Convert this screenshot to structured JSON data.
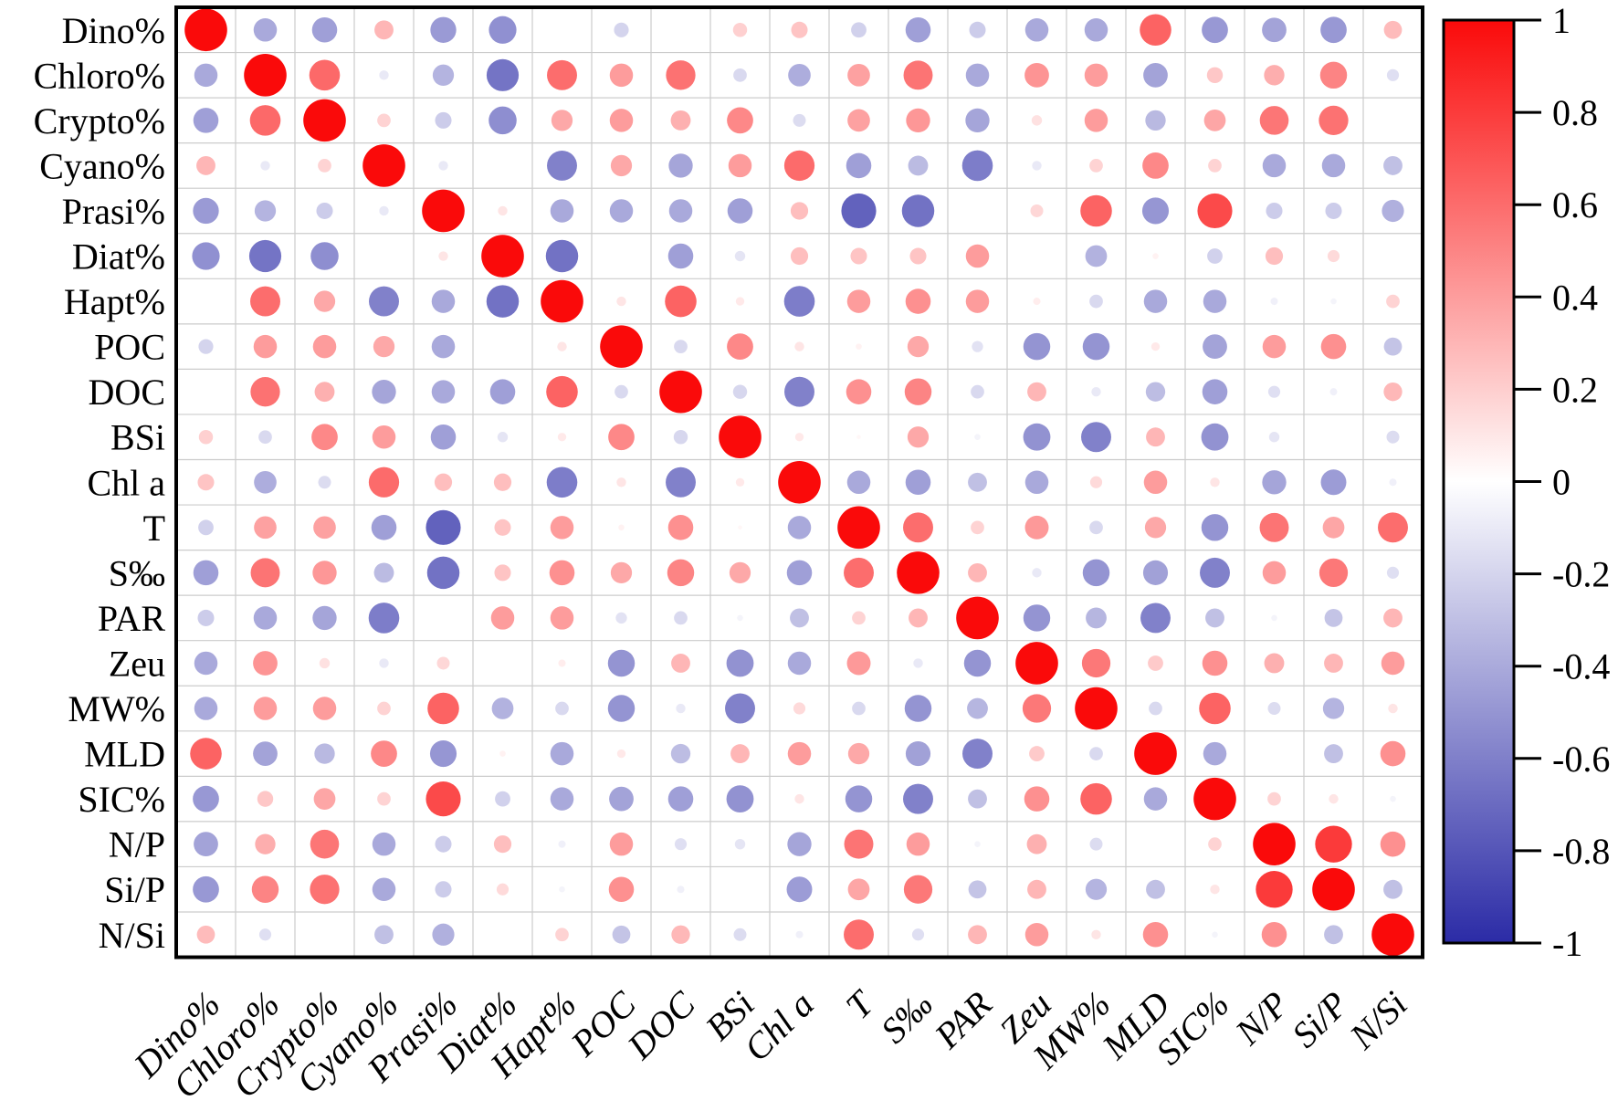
{
  "chart_data": {
    "type": "heatmap",
    "subtype": "correlation-bubble-matrix",
    "title": "",
    "xlabel": "",
    "ylabel": "",
    "variables": [
      "Dino%",
      "Chloro%",
      "Crypto%",
      "Cyano%",
      "Prasi%",
      "Diat%",
      "Hapt%",
      "POC",
      "DOC",
      "BSi",
      "Chl a",
      "T",
      "S‰",
      "PAR",
      "Zeu",
      "MW%",
      "MLD",
      "SIC%",
      "N/P",
      "Si/P",
      "N/Si"
    ],
    "matrix": [
      [
        1,
        -0.3,
        -0.35,
        0.2,
        -0.37,
        -0.42,
        0,
        -0.12,
        0,
        0.11,
        0.15,
        -0.13,
        -0.35,
        -0.15,
        -0.3,
        -0.3,
        0.55,
        -0.38,
        -0.33,
        -0.38,
        0.18
      ],
      [
        -0.3,
        1,
        0.52,
        -0.05,
        -0.25,
        -0.57,
        0.5,
        0.3,
        0.48,
        -0.1,
        -0.28,
        0.28,
        0.47,
        -0.3,
        0.33,
        0.3,
        -0.33,
        0.14,
        0.23,
        0.4,
        -0.08
      ],
      [
        -0.35,
        0.52,
        1,
        0.1,
        -0.15,
        -0.43,
        0.25,
        0.3,
        0.22,
        0.38,
        -0.09,
        0.28,
        0.32,
        -0.32,
        0.06,
        0.3,
        -0.23,
        0.26,
        0.46,
        0.48,
        0
      ],
      [
        0.2,
        -0.05,
        0.1,
        1,
        -0.05,
        0,
        -0.5,
        0.25,
        -0.32,
        0.3,
        0.51,
        -0.35,
        -0.22,
        -0.52,
        -0.05,
        0.1,
        0.38,
        0.1,
        -0.3,
        -0.3,
        -0.2
      ],
      [
        -0.37,
        -0.25,
        -0.15,
        -0.05,
        1,
        0.05,
        -0.3,
        -0.3,
        -0.3,
        -0.35,
        0.17,
        -0.67,
        -0.58,
        0,
        0.09,
        0.55,
        -0.39,
        0.67,
        -0.15,
        -0.15,
        -0.27
      ],
      [
        -0.42,
        -0.57,
        -0.43,
        0,
        0.05,
        1,
        -0.58,
        0,
        -0.35,
        -0.06,
        0.17,
        0.15,
        0.15,
        0.3,
        0,
        -0.26,
        0.02,
        -0.13,
        0.17,
        0.08,
        0
      ],
      [
        0,
        0.5,
        0.25,
        -0.5,
        -0.3,
        -0.58,
        1,
        0.05,
        0.55,
        0.04,
        -0.52,
        0.3,
        0.35,
        0.3,
        0.03,
        -0.1,
        -0.3,
        -0.3,
        -0.03,
        -0.02,
        0.1
      ],
      [
        -0.12,
        0.3,
        0.3,
        0.25,
        -0.3,
        0,
        0.05,
        1,
        -0.1,
        0.38,
        0.05,
        0.02,
        0.25,
        -0.07,
        -0.4,
        -0.4,
        0.04,
        -0.33,
        0.3,
        0.35,
        -0.18
      ],
      [
        0,
        0.48,
        0.22,
        -0.32,
        -0.3,
        -0.35,
        0.55,
        -0.1,
        1,
        -0.11,
        -0.5,
        0.35,
        0.4,
        -0.1,
        0.2,
        -0.05,
        -0.21,
        -0.35,
        -0.08,
        -0.03,
        0.19
      ],
      [
        0.11,
        -0.1,
        0.38,
        0.3,
        -0.35,
        -0.06,
        0.04,
        0.38,
        -0.11,
        1,
        0.04,
        0.01,
        0.25,
        -0.02,
        -0.41,
        -0.5,
        0.2,
        -0.41,
        -0.06,
        0,
        -0.09
      ],
      [
        0.15,
        -0.28,
        -0.09,
        0.51,
        0.17,
        0.17,
        -0.52,
        0.05,
        -0.5,
        0.04,
        1,
        -0.3,
        -0.35,
        -0.2,
        -0.3,
        0.08,
        0.3,
        0.05,
        -0.32,
        -0.36,
        -0.03
      ],
      [
        -0.13,
        0.28,
        0.28,
        -0.35,
        -0.67,
        0.15,
        0.3,
        0.02,
        0.35,
        0.01,
        -0.3,
        1,
        0.5,
        0.1,
        0.31,
        -0.1,
        0.25,
        -0.4,
        0.47,
        0.26,
        0.5
      ],
      [
        -0.35,
        0.47,
        0.32,
        -0.22,
        -0.58,
        0.15,
        0.35,
        0.25,
        0.4,
        0.25,
        -0.35,
        0.5,
        1,
        0.2,
        -0.05,
        -0.4,
        -0.34,
        -0.5,
        0.3,
        0.45,
        -0.08
      ],
      [
        -0.15,
        -0.3,
        -0.32,
        -0.52,
        0,
        0.3,
        0.3,
        -0.07,
        -0.1,
        -0.02,
        -0.2,
        0.1,
        0.2,
        1,
        -0.4,
        -0.24,
        -0.5,
        -0.2,
        -0.02,
        -0.18,
        0.2
      ],
      [
        -0.3,
        0.33,
        0.06,
        -0.05,
        0.09,
        0,
        0.03,
        -0.4,
        0.2,
        -0.41,
        -0.3,
        0.31,
        -0.05,
        -0.4,
        1,
        0.45,
        0.13,
        0.35,
        0.22,
        0.2,
        0.3
      ],
      [
        -0.3,
        0.3,
        0.3,
        0.1,
        0.55,
        -0.26,
        -0.1,
        -0.4,
        -0.05,
        -0.5,
        0.08,
        -0.1,
        -0.4,
        -0.24,
        0.45,
        1,
        -0.1,
        0.55,
        -0.09,
        -0.25,
        0.05
      ],
      [
        0.55,
        -0.33,
        -0.23,
        0.38,
        -0.39,
        0.02,
        -0.3,
        0.04,
        -0.21,
        0.2,
        0.3,
        0.25,
        -0.34,
        -0.5,
        0.13,
        -0.1,
        1,
        -0.3,
        0,
        -0.2,
        0.35
      ],
      [
        -0.38,
        0.14,
        0.26,
        0.1,
        0.67,
        -0.13,
        -0.3,
        -0.33,
        -0.35,
        -0.41,
        0.05,
        -0.4,
        -0.5,
        -0.2,
        0.35,
        0.55,
        -0.3,
        1,
        0.1,
        0.05,
        -0.02
      ],
      [
        -0.33,
        0.23,
        0.46,
        -0.3,
        -0.15,
        0.17,
        -0.03,
        0.3,
        -0.08,
        -0.06,
        -0.32,
        0.47,
        0.3,
        -0.02,
        0.22,
        -0.09,
        0,
        0.1,
        1,
        0.75,
        0.35
      ],
      [
        -0.38,
        0.4,
        0.48,
        -0.3,
        -0.15,
        0.08,
        -0.02,
        0.35,
        -0.03,
        0,
        -0.36,
        0.26,
        0.45,
        -0.18,
        0.2,
        -0.25,
        -0.2,
        0.05,
        0.75,
        1,
        -0.2
      ],
      [
        0.18,
        -0.08,
        0,
        -0.2,
        -0.27,
        0,
        0.1,
        -0.18,
        0.19,
        -0.09,
        -0.03,
        0.5,
        -0.08,
        0.2,
        0.3,
        0.05,
        0.35,
        -0.02,
        0.35,
        -0.2,
        1
      ]
    ],
    "value_range": [
      -1,
      1
    ],
    "grid": true,
    "legend_position": "right",
    "colorbar": {
      "tick_labels": [
        "1",
        "0.8",
        "0.6",
        "0.4",
        "0.2",
        "0",
        "-0.2",
        "-0.4",
        "-0.6",
        "-0.8",
        "-1"
      ],
      "positive_color": "#fa0a0a",
      "zero_color": "#ffffff",
      "negative_color": "#2b2ba6"
    }
  }
}
